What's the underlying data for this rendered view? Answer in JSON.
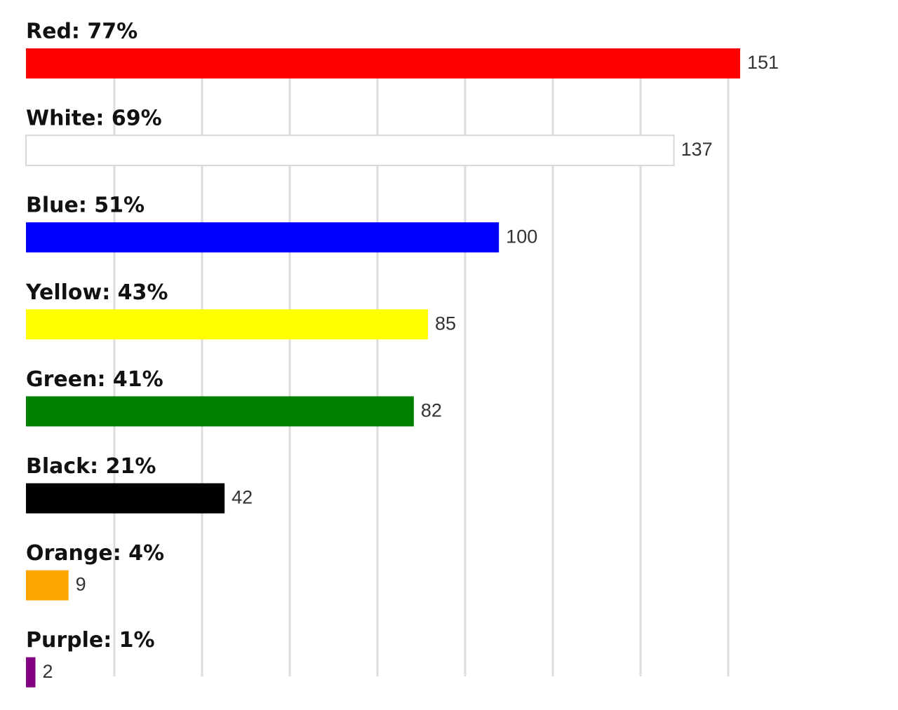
{
  "chart_data": {
    "type": "bar",
    "orientation": "horizontal",
    "categories": [
      "Red: 77%",
      "White: 69%",
      "Blue: 51%",
      "Yellow: 43%",
      "Green: 41%",
      "Black: 21%",
      "Orange: 4%",
      "Purple: 1%"
    ],
    "values": [
      151,
      137,
      100,
      85,
      82,
      42,
      9,
      2
    ],
    "colors": [
      "#ff0000",
      "#ffffff",
      "#0000ff",
      "#ffff00",
      "#008000",
      "#000000",
      "#ffa500",
      "#800080"
    ],
    "xlim": [
      0,
      151
    ],
    "grid": true
  }
}
